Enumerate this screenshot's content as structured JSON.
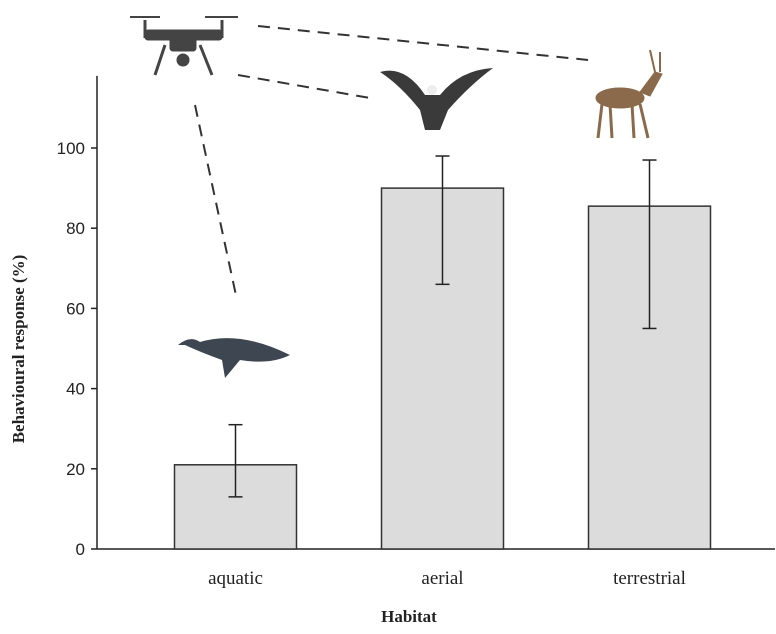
{
  "chart_data": {
    "type": "bar",
    "x_label": "Habitat",
    "y_label": "Behavioural response (%)",
    "categories": [
      "aquatic",
      "aerial",
      "terrestrial"
    ],
    "values": [
      21,
      90,
      85.5
    ],
    "error_lower": [
      13,
      66,
      55
    ],
    "error_upper": [
      31,
      98,
      97
    ],
    "color": "#dcdcdc",
    "ylim": [
      0,
      118
    ],
    "yticks": [
      0,
      20,
      40,
      60,
      80,
      100
    ]
  }
}
